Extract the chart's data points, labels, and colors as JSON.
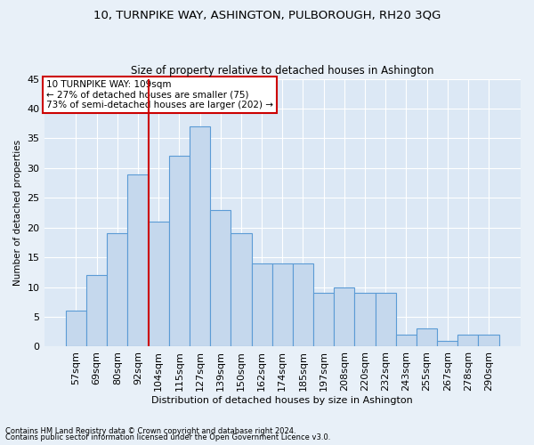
{
  "title": "10, TURNPIKE WAY, ASHINGTON, PULBOROUGH, RH20 3QG",
  "subtitle": "Size of property relative to detached houses in Ashington",
  "xlabel": "Distribution of detached houses by size in Ashington",
  "ylabel": "Number of detached properties",
  "bar_labels": [
    "57sqm",
    "69sqm",
    "80sqm",
    "92sqm",
    "104sqm",
    "115sqm",
    "127sqm",
    "139sqm",
    "150sqm",
    "162sqm",
    "174sqm",
    "185sqm",
    "197sqm",
    "208sqm",
    "220sqm",
    "232sqm",
    "243sqm",
    "255sqm",
    "267sqm",
    "278sqm",
    "290sqm"
  ],
  "bar_values": [
    6,
    12,
    19,
    29,
    21,
    32,
    37,
    23,
    19,
    14,
    14,
    14,
    9,
    10,
    9,
    9,
    2,
    3,
    1,
    2,
    2
  ],
  "bar_color": "#c5d8ed",
  "bar_edge_color": "#5b9bd5",
  "bg_color": "#e8f0f8",
  "plot_bg_color": "#dce8f5",
  "grid_color": "#ffffff",
  "vline_index": 4,
  "vline_color": "#cc0000",
  "annotation_text": "10 TURNPIKE WAY: 109sqm\n← 27% of detached houses are smaller (75)\n73% of semi-detached houses are larger (202) →",
  "annotation_box_color": "#ffffff",
  "annotation_box_edge": "#cc0000",
  "footnote1": "Contains HM Land Registry data © Crown copyright and database right 2024.",
  "footnote2": "Contains public sector information licensed under the Open Government Licence v3.0.",
  "ylim": [
    0,
    45
  ],
  "yticks": [
    0,
    5,
    10,
    15,
    20,
    25,
    30,
    35,
    40,
    45
  ]
}
